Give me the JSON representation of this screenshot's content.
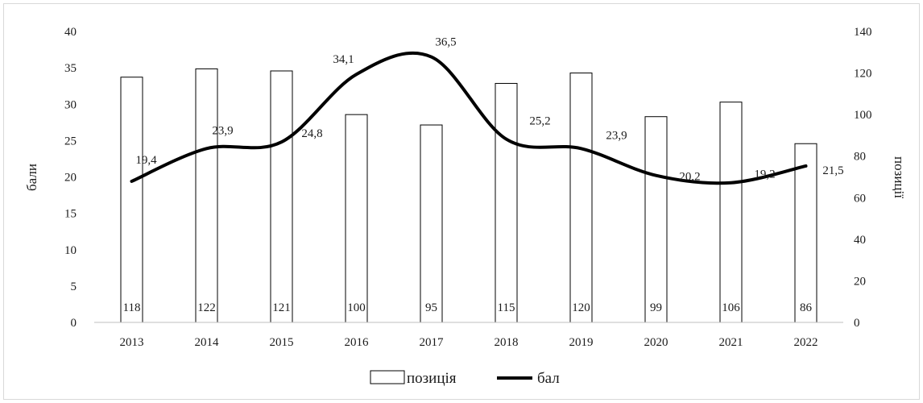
{
  "chart_data": {
    "type": "bar+line",
    "categories": [
      "2013",
      "2014",
      "2015",
      "2016",
      "2017",
      "2018",
      "2019",
      "2020",
      "2021",
      "2022"
    ],
    "series": [
      {
        "name": "позиція",
        "kind": "bar",
        "axis": "right",
        "values": [
          118,
          122,
          121,
          100,
          95,
          115,
          120,
          99,
          106,
          86
        ],
        "labels": [
          "118",
          "122",
          "121",
          "100",
          "95",
          "115",
          "120",
          "99",
          "106",
          "86"
        ]
      },
      {
        "name": "бал",
        "kind": "line",
        "axis": "left",
        "values": [
          19.4,
          23.9,
          24.8,
          34.1,
          36.5,
          25.2,
          23.9,
          20.2,
          19.2,
          21.5
        ],
        "labels": [
          "19,4",
          "23,9",
          "24,8",
          "34,1",
          "36,5",
          "25,2",
          "23,9",
          "20,2",
          "19,2",
          "21,5"
        ]
      }
    ],
    "y_left": {
      "label": "бали",
      "range": [
        0,
        40
      ],
      "ticks": [
        "0",
        "5",
        "10",
        "15",
        "20",
        "25",
        "30",
        "35",
        "40"
      ]
    },
    "y_right": {
      "label": "позиції",
      "range": [
        0,
        140
      ],
      "ticks": [
        "0",
        "20",
        "40",
        "60",
        "80",
        "100",
        "120",
        "140"
      ]
    },
    "grid": false,
    "legend": {
      "position": "bottom",
      "items": [
        {
          "label": "позиція",
          "symbol": "bar"
        },
        {
          "label": "бал",
          "symbol": "line"
        }
      ]
    },
    "colors": {
      "bar_fill": "#ffffff",
      "bar_stroke": "#000000",
      "line": "#000000",
      "axis": "#bfbfbf"
    }
  }
}
